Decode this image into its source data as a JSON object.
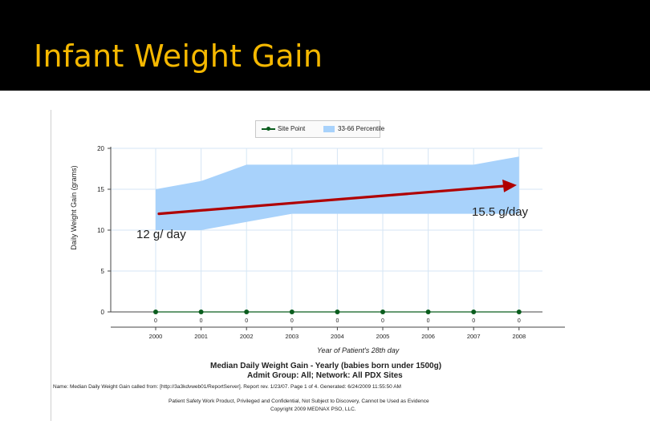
{
  "slide": {
    "title": "Infant Weight Gain"
  },
  "report": {
    "title": "Median Daily Weight Gain - Yearly (babies born under 1500g)",
    "subtitle": "Admit Group: All; Network: All PDX Sites",
    "footer": "Name: Median Daily Weight Gain called from: [http://3a3kdvweb01/ReportServer]. Report rev. 1/23/07. Page 1 of 4. Generated: 6/24/2009 11:55:50 AM",
    "confidential": "Patient Safety Work Product, Privileged and Confidential, Not Subject to Discovery, Cannot be Used as Evidence",
    "copyright": "Copyright 2009 MEDNAX PSO, LLC."
  },
  "annotations": {
    "start_label": "12 g/ day",
    "end_label": "15.5 g/day",
    "trend_start": 12,
    "trend_end": 15.5,
    "color": "#b00000"
  },
  "chart_data": {
    "type": "area",
    "title": "",
    "xlabel": "Year of Patient's 28th day",
    "ylabel": "Daily Weight Gain (grams)",
    "categories": [
      "2000",
      "2001",
      "2002",
      "2003",
      "2004",
      "2005",
      "2006",
      "2007",
      "2008"
    ],
    "ylim": [
      0,
      20
    ],
    "yticks": [
      "0",
      "5",
      "10",
      "15",
      "20"
    ],
    "band": {
      "name": "33-66 Percentile",
      "color": "#a8d2fb",
      "low": [
        10,
        10,
        11,
        12,
        12,
        12,
        12,
        12,
        12
      ],
      "high": [
        15,
        16,
        18,
        18,
        18,
        18,
        18,
        18,
        19
      ]
    },
    "series": [
      {
        "name": "Site Point",
        "color": "#0b5d1e",
        "values": [
          0,
          0,
          0,
          0,
          0,
          0,
          0,
          0,
          0
        ],
        "labels": [
          "0",
          "0",
          "0",
          "0",
          "0",
          "0",
          "0",
          "0",
          "0"
        ]
      }
    ],
    "legend": [
      "Site Point",
      "33-66 Percentile"
    ],
    "grid": true
  }
}
